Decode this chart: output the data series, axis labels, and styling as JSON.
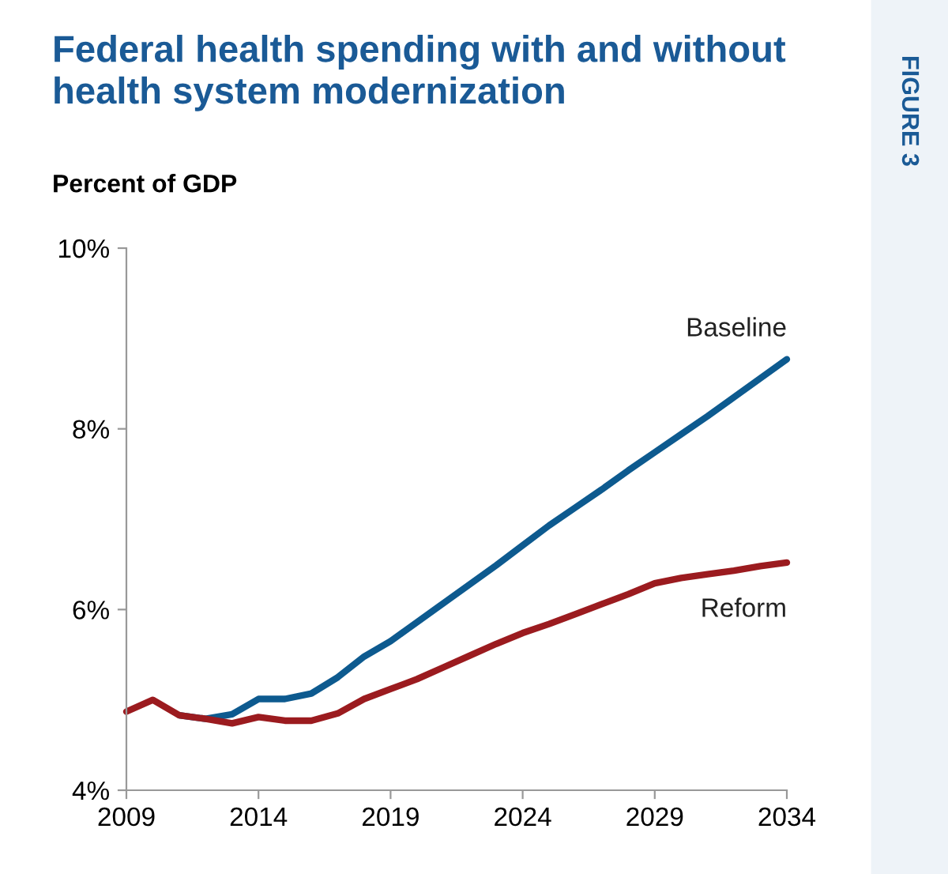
{
  "chart_data": {
    "type": "line",
    "title": "Federal health spending with and without\nhealth system modernization",
    "ylabel": "Percent of GDP",
    "annotations": [
      "FIGURE 3"
    ],
    "x": [
      2009,
      2010,
      2011,
      2012,
      2013,
      2014,
      2015,
      2016,
      2017,
      2018,
      2019,
      2020,
      2021,
      2022,
      2023,
      2024,
      2025,
      2026,
      2027,
      2028,
      2029,
      2030,
      2031,
      2032,
      2033,
      2034
    ],
    "series": [
      {
        "name": "Baseline",
        "color": "#0d5a8f",
        "values": [
          null,
          null,
          4.83,
          4.79,
          4.84,
          5.01,
          5.01,
          5.07,
          5.25,
          5.48,
          5.65,
          5.86,
          6.07,
          6.28,
          6.49,
          6.71,
          6.93,
          7.13,
          7.33,
          7.54,
          7.74,
          7.94,
          8.14,
          8.35,
          8.56,
          8.77
        ]
      },
      {
        "name": "Reform",
        "color": "#9b1b1f",
        "values": [
          4.87,
          5.0,
          4.83,
          4.79,
          4.74,
          4.81,
          4.77,
          4.77,
          4.85,
          5.01,
          5.12,
          5.23,
          5.36,
          5.49,
          5.62,
          5.74,
          5.84,
          5.95,
          6.06,
          6.17,
          6.29,
          6.35,
          6.39,
          6.43,
          6.48,
          6.52
        ]
      }
    ],
    "xlim": [
      2009,
      2034
    ],
    "xticks": [
      2009,
      2014,
      2019,
      2024,
      2029,
      2034
    ],
    "ylim": [
      4,
      10
    ],
    "yticks": [
      {
        "value": 4,
        "label": "4%"
      },
      {
        "value": 6,
        "label": "6%"
      },
      {
        "value": 8,
        "label": "8%"
      },
      {
        "value": 10,
        "label": "10%"
      }
    ],
    "grid": false,
    "legend": false,
    "line_style": "solid",
    "marker": "none"
  }
}
